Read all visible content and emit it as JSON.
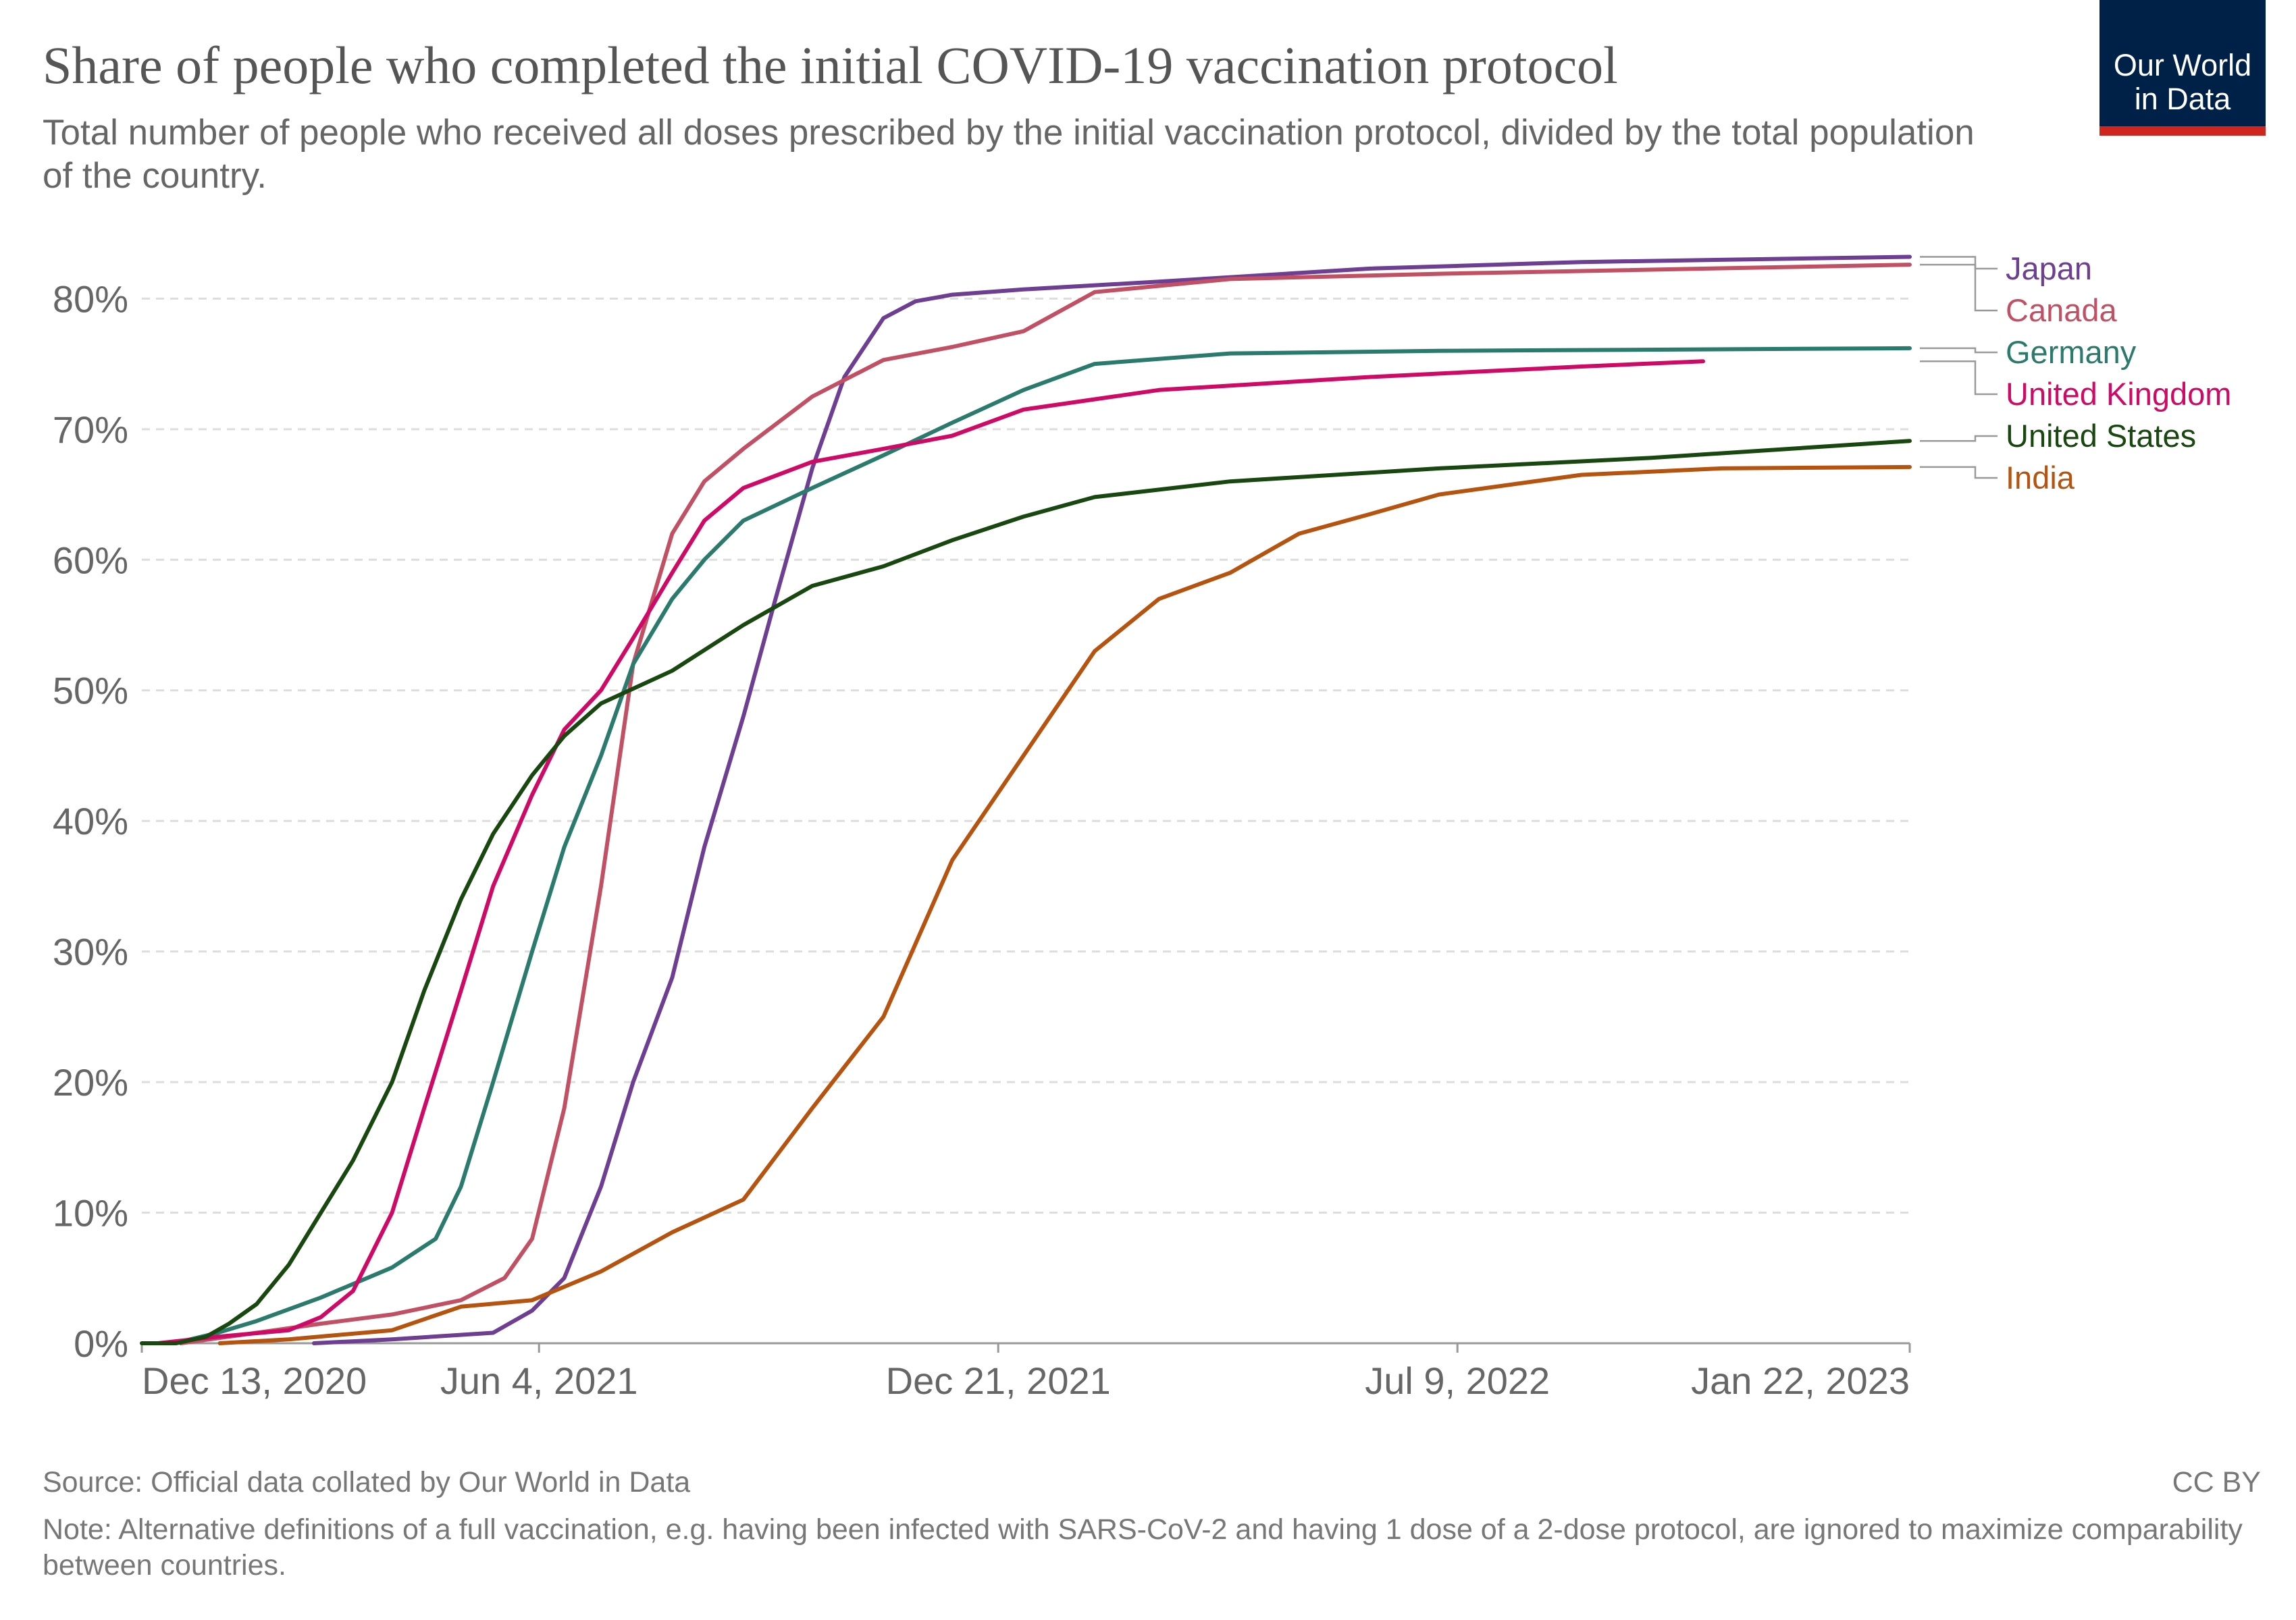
{
  "header": {
    "title": "Share of people who completed the initial COVID-19 vaccination protocol",
    "subtitle": "Total number of people who received all doses prescribed by the initial vaccination protocol, divided by the total population of the country.",
    "logo_line1": "Our World",
    "logo_line2": "in Data",
    "logo_bg_color": "#002147",
    "logo_bar_color": "#ce261e"
  },
  "footer": {
    "source": "Source: Official data collated by Our World in Data",
    "license": "CC BY",
    "note": "Note: Alternative definitions of a full vaccination, e.g. having been infected with SARS-CoV-2 and having 1 dose of a 2-dose protocol, are ignored to maximize comparability between countries."
  },
  "chart_data": {
    "type": "line",
    "title": "Share of people who completed the initial COVID-19 vaccination protocol",
    "xlabel": "",
    "ylabel": "",
    "xlim": [
      "2020-12-13",
      "2023-01-22"
    ],
    "ylim": [
      0,
      84
    ],
    "y_ticks": [
      0,
      10,
      20,
      30,
      40,
      50,
      60,
      70,
      80
    ],
    "y_tick_format": "percent",
    "x_ticks": [
      {
        "date": "2020-12-13",
        "label": "Dec 13, 2020"
      },
      {
        "date": "2021-06-04",
        "label": "Jun 4, 2021"
      },
      {
        "date": "2021-12-21",
        "label": "Dec 21, 2021"
      },
      {
        "date": "2022-07-09",
        "label": "Jul 9, 2022"
      },
      {
        "date": "2023-01-22",
        "label": "Jan 22, 2023"
      }
    ],
    "grid": "horizontal dashed",
    "legend": "right (line-end labels)",
    "series": [
      {
        "name": "Japan",
        "color": "#6d3e91",
        "points": [
          [
            "2021-02-26",
            0
          ],
          [
            "2021-04-01",
            0.3
          ],
          [
            "2021-05-15",
            0.8
          ],
          [
            "2021-06-01",
            2.5
          ],
          [
            "2021-06-15",
            5
          ],
          [
            "2021-07-01",
            12
          ],
          [
            "2021-07-15",
            20
          ],
          [
            "2021-08-01",
            28
          ],
          [
            "2021-08-15",
            38
          ],
          [
            "2021-09-01",
            48
          ],
          [
            "2021-09-15",
            57
          ],
          [
            "2021-10-01",
            67
          ],
          [
            "2021-10-15",
            74
          ],
          [
            "2021-11-01",
            78.5
          ],
          [
            "2021-11-15",
            79.8
          ],
          [
            "2021-12-01",
            80.3
          ],
          [
            "2022-01-01",
            80.7
          ],
          [
            "2022-03-01",
            81.3
          ],
          [
            "2022-06-01",
            82.3
          ],
          [
            "2022-09-01",
            82.8
          ],
          [
            "2023-01-22",
            83.2
          ]
        ]
      },
      {
        "name": "Canada",
        "color": "#c15065",
        "points": [
          [
            "2020-12-30",
            0
          ],
          [
            "2021-02-01",
            0.8
          ],
          [
            "2021-03-01",
            1.5
          ],
          [
            "2021-04-01",
            2.2
          ],
          [
            "2021-05-01",
            3.3
          ],
          [
            "2021-05-20",
            5
          ],
          [
            "2021-06-01",
            8
          ],
          [
            "2021-06-15",
            18
          ],
          [
            "2021-07-01",
            35
          ],
          [
            "2021-07-15",
            52
          ],
          [
            "2021-08-01",
            62
          ],
          [
            "2021-08-15",
            66
          ],
          [
            "2021-09-01",
            68.5
          ],
          [
            "2021-10-01",
            72.5
          ],
          [
            "2021-11-01",
            75.3
          ],
          [
            "2021-12-01",
            76.3
          ],
          [
            "2022-01-01",
            77.5
          ],
          [
            "2022-02-01",
            80.5
          ],
          [
            "2022-04-01",
            81.5
          ],
          [
            "2022-07-01",
            81.9
          ],
          [
            "2023-01-22",
            82.6
          ]
        ]
      },
      {
        "name": "Germany",
        "color": "#2a7b6d",
        "points": [
          [
            "2020-12-27",
            0
          ],
          [
            "2021-01-15",
            0.8
          ],
          [
            "2021-02-01",
            1.7
          ],
          [
            "2021-03-01",
            3.5
          ],
          [
            "2021-04-01",
            5.8
          ],
          [
            "2021-04-20",
            8
          ],
          [
            "2021-05-01",
            12
          ],
          [
            "2021-05-15",
            20
          ],
          [
            "2021-06-01",
            30
          ],
          [
            "2021-06-15",
            38
          ],
          [
            "2021-07-01",
            45
          ],
          [
            "2021-07-15",
            52
          ],
          [
            "2021-08-01",
            57
          ],
          [
            "2021-08-15",
            60
          ],
          [
            "2021-09-01",
            63
          ],
          [
            "2021-10-01",
            65.5
          ],
          [
            "2021-11-01",
            68
          ],
          [
            "2021-12-01",
            70.5
          ],
          [
            "2022-01-01",
            73
          ],
          [
            "2022-02-01",
            75
          ],
          [
            "2022-04-01",
            75.8
          ],
          [
            "2022-07-01",
            76
          ],
          [
            "2023-01-22",
            76.2
          ]
        ]
      },
      {
        "name": "United Kingdom",
        "color": "#cf0a66",
        "points": [
          [
            "2020-12-20",
            0
          ],
          [
            "2021-01-15",
            0.5
          ],
          [
            "2021-02-15",
            1
          ],
          [
            "2021-03-01",
            2
          ],
          [
            "2021-03-15",
            4
          ],
          [
            "2021-04-01",
            10
          ],
          [
            "2021-04-15",
            18
          ],
          [
            "2021-05-01",
            27
          ],
          [
            "2021-05-15",
            35
          ],
          [
            "2021-06-01",
            42
          ],
          [
            "2021-06-15",
            47
          ],
          [
            "2021-07-01",
            50
          ],
          [
            "2021-07-15",
            54
          ],
          [
            "2021-08-01",
            59
          ],
          [
            "2021-08-15",
            63
          ],
          [
            "2021-09-01",
            65.5
          ],
          [
            "2021-10-01",
            67.5
          ],
          [
            "2021-11-01",
            68.5
          ],
          [
            "2021-12-01",
            69.5
          ],
          [
            "2022-01-01",
            71.5
          ],
          [
            "2022-03-01",
            73
          ],
          [
            "2022-06-01",
            74
          ],
          [
            "2022-09-01",
            74.8
          ],
          [
            "2022-10-24",
            75.2
          ]
        ]
      },
      {
        "name": "United States",
        "color": "#18470f",
        "points": [
          [
            "2020-12-13",
            0
          ],
          [
            "2020-12-28",
            0
          ],
          [
            "2021-01-10",
            0.5
          ],
          [
            "2021-01-20",
            1.5
          ],
          [
            "2021-02-01",
            3
          ],
          [
            "2021-02-15",
            6
          ],
          [
            "2021-03-01",
            10
          ],
          [
            "2021-03-15",
            14
          ],
          [
            "2021-04-01",
            20
          ],
          [
            "2021-04-15",
            27
          ],
          [
            "2021-05-01",
            34
          ],
          [
            "2021-05-15",
            39
          ],
          [
            "2021-06-01",
            43.5
          ],
          [
            "2021-06-15",
            46.5
          ],
          [
            "2021-07-01",
            49
          ],
          [
            "2021-08-01",
            51.5
          ],
          [
            "2021-09-01",
            55
          ],
          [
            "2021-10-01",
            58
          ],
          [
            "2021-11-01",
            59.5
          ],
          [
            "2021-12-01",
            61.5
          ],
          [
            "2022-01-01",
            63.3
          ],
          [
            "2022-02-01",
            64.8
          ],
          [
            "2022-04-01",
            66
          ],
          [
            "2022-07-01",
            67
          ],
          [
            "2022-10-01",
            67.8
          ],
          [
            "2023-01-22",
            69.1
          ]
        ]
      },
      {
        "name": "India",
        "color": "#b5530f",
        "points": [
          [
            "2021-01-16",
            0
          ],
          [
            "2021-02-15",
            0.3
          ],
          [
            "2021-04-01",
            1
          ],
          [
            "2021-05-01",
            2.8
          ],
          [
            "2021-06-01",
            3.3
          ],
          [
            "2021-07-01",
            5.5
          ],
          [
            "2021-08-01",
            8.5
          ],
          [
            "2021-09-01",
            11
          ],
          [
            "2021-10-01",
            18
          ],
          [
            "2021-11-01",
            25
          ],
          [
            "2021-12-01",
            37
          ],
          [
            "2022-01-01",
            45
          ],
          [
            "2022-02-01",
            53
          ],
          [
            "2022-03-01",
            57
          ],
          [
            "2022-04-01",
            59
          ],
          [
            "2022-05-01",
            62
          ],
          [
            "2022-06-01",
            63.5
          ],
          [
            "2022-07-01",
            65
          ],
          [
            "2022-09-01",
            66.5
          ],
          [
            "2022-11-01",
            67
          ],
          [
            "2023-01-22",
            67.1
          ]
        ]
      }
    ]
  }
}
